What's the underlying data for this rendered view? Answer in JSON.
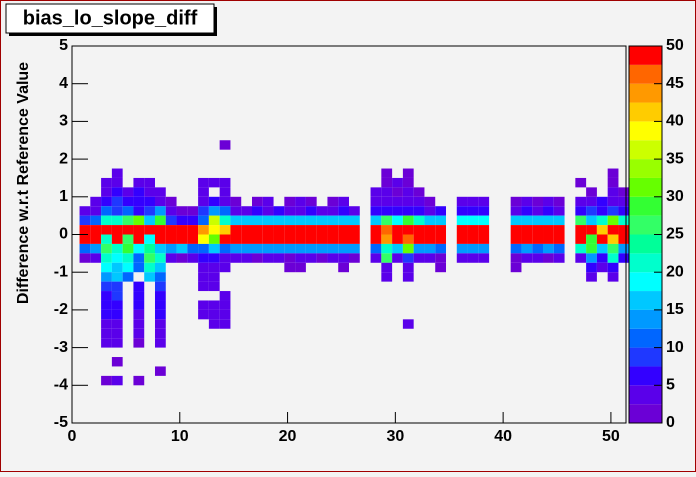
{
  "chart_data": {
    "type": "heatmap",
    "title": "bias_lo_slope_diff",
    "y_label": "Difference w.r.t Reference Value",
    "xlim": [
      0,
      51.4
    ],
    "ylim": [
      -5,
      5
    ],
    "xticks": [
      0,
      10,
      20,
      30,
      40,
      50
    ],
    "yticks": [
      -5,
      -4,
      -3,
      -2,
      -1,
      0,
      1,
      2,
      3,
      4,
      5
    ],
    "zlim": [
      0,
      50
    ],
    "zticks": [
      0,
      5,
      10,
      15,
      20,
      25,
      30,
      35,
      40,
      45,
      50
    ],
    "bin_size": [
      1,
      0.25
    ],
    "palette": [
      "#6b00d6",
      "#5a00ea",
      "#3300ff",
      "#1f38ff",
      "#0066ff",
      "#0099ff",
      "#00c8ff",
      "#00ffff",
      "#00ffcc",
      "#00ff99",
      "#33ff66",
      "#33ff33",
      "#66ff00",
      "#99ff00",
      "#ccff00",
      "#ffff00",
      "#ffcc00",
      "#ff9900",
      "#ff6600",
      "#ff0000"
    ],
    "rows": [
      {
        "y": 2.25,
        "x": [
          13.7
        ],
        "z": [
          2
        ]
      },
      {
        "y": 1.5,
        "x": [
          3.7,
          28.7,
          30.7,
          49.7
        ],
        "z": [
          3,
          2,
          2,
          2
        ]
      },
      {
        "y": 1.25,
        "x": [
          2.7,
          3.7,
          5.7,
          6.7,
          11.7,
          12.7,
          13.7,
          28.7,
          29.7,
          30.7,
          46.7,
          49.7
        ],
        "z": [
          3,
          4,
          3,
          3,
          3,
          3,
          3,
          2,
          3,
          2,
          2,
          2
        ]
      },
      {
        "y": 1,
        "x": [
          2.7,
          3.7,
          4.7,
          5.7,
          6.7,
          7.7,
          11.7,
          13.7,
          27.7,
          28.7,
          29.7,
          30.7,
          31.7,
          47.7,
          49.7,
          50.7
        ],
        "z": [
          4,
          6,
          4,
          5,
          4,
          3,
          3,
          3,
          3,
          3,
          2,
          3,
          2,
          2,
          3,
          2
        ]
      },
      {
        "y": 0.75,
        "x": [
          1.7,
          2.7,
          3.7,
          4.7,
          5.7,
          6.7,
          7.7,
          8.7,
          11.7,
          12.7,
          13.7,
          14.7,
          16.7,
          17.7,
          19.7,
          20.7,
          21.7,
          23.7,
          24.7,
          27.7,
          28.7,
          29.7,
          30.7,
          31.7,
          32.7,
          35.7,
          36.7,
          37.7,
          40.7,
          41.7,
          42.7,
          43.7,
          44.7,
          46.7,
          47.7,
          48.7,
          49.7,
          50.7
        ],
        "z": [
          3,
          6,
          8,
          5,
          7,
          6,
          4,
          2,
          4,
          5,
          3,
          2,
          2,
          3,
          2,
          3,
          2,
          2,
          3,
          3,
          4,
          3,
          4,
          3,
          2,
          3,
          3,
          3,
          2,
          3,
          2,
          3,
          2,
          4,
          3,
          5,
          4,
          3
        ]
      },
      {
        "y": 0.5,
        "x": [
          0.7,
          1.7,
          2.7,
          3.7,
          4.7,
          5.7,
          6.7,
          7.7,
          8.7,
          9.7,
          10.7,
          11.7,
          12.7,
          13.7,
          14.7,
          15.7,
          16.7,
          17.7,
          18.7,
          19.7,
          20.7,
          21.7,
          22.7,
          23.7,
          24.7,
          25.7,
          27.7,
          28.7,
          29.7,
          30.7,
          31.7,
          32.7,
          33.7,
          35.7,
          36.7,
          37.7,
          40.7,
          41.7,
          42.7,
          43.7,
          44.7,
          46.7,
          47.7,
          48.7,
          49.7,
          50.7
        ],
        "z": [
          4,
          3,
          10,
          8,
          12,
          6,
          9,
          14,
          3,
          2,
          2,
          8,
          14,
          10,
          4,
          3,
          5,
          4,
          6,
          3,
          4,
          5,
          3,
          4,
          6,
          4,
          5,
          6,
          7,
          5,
          6,
          4,
          5,
          6,
          5,
          6,
          4,
          5,
          4,
          5,
          4,
          6,
          8,
          7,
          9,
          6
        ]
      },
      {
        "y": 0.25,
        "x": [
          0.7,
          1.7,
          2.7,
          3.7,
          4.7,
          5.7,
          6.7,
          7.7,
          8.7,
          9.7,
          10.7,
          11.7,
          12.7,
          13.7,
          14.7,
          15.7,
          16.7,
          17.7,
          18.7,
          19.7,
          20.7,
          21.7,
          22.7,
          23.7,
          24.7,
          25.7,
          27.7,
          28.7,
          29.7,
          30.7,
          31.7,
          32.7,
          33.7,
          35.7,
          36.7,
          37.7,
          40.7,
          41.7,
          42.7,
          43.7,
          44.7,
          46.7,
          47.7,
          48.7,
          49.7,
          50.7
        ],
        "z": [
          8,
          10,
          20,
          22,
          25,
          30,
          15,
          28,
          8,
          6,
          6,
          12,
          35,
          20,
          16,
          17,
          16,
          17,
          16,
          17,
          16,
          17,
          16,
          17,
          16,
          17,
          15,
          25,
          18,
          28,
          20,
          15,
          17,
          18,
          18,
          18,
          16,
          16,
          16,
          16,
          16,
          25,
          15,
          22,
          30,
          20
        ]
      },
      {
        "y": 0,
        "x": [
          0.7,
          1.7,
          2.7,
          3.7,
          4.7,
          5.7,
          6.7,
          7.7,
          8.7,
          9.7,
          10.7,
          11.7,
          12.7,
          13.7,
          14.7,
          15.7,
          16.7,
          17.7,
          18.7,
          19.7,
          20.7,
          21.7,
          22.7,
          23.7,
          24.7,
          25.7,
          27.7,
          28.7,
          29.7,
          30.7,
          31.7,
          32.7,
          33.7,
          35.7,
          36.7,
          37.7,
          40.7,
          41.7,
          42.7,
          43.7,
          44.7,
          46.7,
          47.7,
          48.7,
          49.7,
          50.7
        ],
        "z": [
          50,
          50,
          50,
          50,
          50,
          50,
          50,
          50,
          50,
          50,
          50,
          44,
          38,
          42,
          50,
          50,
          50,
          50,
          50,
          50,
          50,
          50,
          50,
          50,
          50,
          50,
          50,
          46,
          50,
          50,
          50,
          50,
          50,
          50,
          50,
          50,
          50,
          50,
          50,
          50,
          50,
          50,
          50,
          42,
          50,
          50
        ]
      },
      {
        "y": -0.25,
        "x": [
          0.7,
          1.7,
          2.7,
          3.7,
          4.7,
          5.7,
          6.7,
          7.7,
          8.7,
          9.7,
          10.7,
          11.7,
          12.7,
          13.7,
          14.7,
          15.7,
          16.7,
          17.7,
          18.7,
          19.7,
          20.7,
          21.7,
          22.7,
          23.7,
          24.7,
          25.7,
          27.7,
          28.7,
          29.7,
          30.7,
          31.7,
          32.7,
          33.7,
          35.7,
          36.7,
          37.7,
          40.7,
          41.7,
          42.7,
          43.7,
          44.7,
          46.7,
          47.7,
          48.7,
          49.7,
          50.7
        ],
        "z": [
          50,
          50,
          20,
          50,
          25,
          50,
          18,
          50,
          50,
          50,
          50,
          38,
          30,
          50,
          50,
          50,
          50,
          50,
          50,
          50,
          50,
          50,
          50,
          50,
          50,
          50,
          50,
          44,
          50,
          46,
          50,
          50,
          50,
          50,
          50,
          50,
          50,
          50,
          50,
          50,
          50,
          50,
          28,
          50,
          40,
          50
        ]
      },
      {
        "y": -0.5,
        "x": [
          0.7,
          1.7,
          2.7,
          3.7,
          4.7,
          5.7,
          6.7,
          7.7,
          8.7,
          9.7,
          10.7,
          11.7,
          12.7,
          13.7,
          14.7,
          15.7,
          16.7,
          17.7,
          18.7,
          19.7,
          20.7,
          21.7,
          22.7,
          23.7,
          24.7,
          25.7,
          27.7,
          28.7,
          29.7,
          30.7,
          31.7,
          32.7,
          33.7,
          35.7,
          36.7,
          37.7,
          40.7,
          41.7,
          42.7,
          43.7,
          44.7,
          46.7,
          47.7,
          48.7,
          49.7,
          50.7
        ],
        "z": [
          12,
          14,
          25,
          20,
          28,
          18,
          24,
          15,
          14,
          16,
          12,
          10,
          15,
          12,
          14,
          13,
          14,
          13,
          14,
          13,
          14,
          13,
          14,
          13,
          14,
          13,
          12,
          22,
          15,
          30,
          14,
          13,
          12,
          14,
          13,
          14,
          12,
          13,
          12,
          14,
          12,
          20,
          28,
          15,
          26,
          14
        ]
      },
      {
        "y": -0.75,
        "x": [
          0.7,
          1.7,
          2.7,
          3.7,
          4.7,
          5.7,
          6.7,
          7.7,
          8.7,
          9.7,
          10.7,
          11.7,
          12.7,
          13.7,
          14.7,
          15.7,
          16.7,
          17.7,
          18.7,
          19.7,
          20.7,
          21.7,
          22.7,
          23.7,
          24.7,
          25.7,
          27.7,
          28.7,
          29.7,
          30.7,
          31.7,
          32.7,
          33.7,
          35.7,
          36.7,
          37.7,
          40.7,
          41.7,
          42.7,
          43.7,
          44.7,
          46.7,
          47.7,
          48.7,
          49.7,
          50.7
        ],
        "z": [
          2,
          3,
          22,
          18,
          20,
          12,
          25,
          20,
          3,
          2,
          3,
          6,
          5,
          4,
          3,
          3,
          2,
          3,
          3,
          2,
          3,
          3,
          2,
          3,
          3,
          2,
          3,
          26,
          4,
          8,
          3,
          3,
          2,
          3,
          3,
          3,
          2,
          3,
          3,
          2,
          3,
          3,
          14,
          6,
          22,
          5
        ]
      },
      {
        "y": -1,
        "x": [
          2.7,
          3.7,
          4.7,
          5.7,
          6.7,
          7.7,
          11.7,
          12.7,
          13.7,
          19.7,
          20.7,
          24.7,
          28.7,
          30.7,
          33.7,
          40.7,
          47.7,
          48.7,
          49.7
        ],
        "z": [
          18,
          15,
          18,
          10,
          20,
          16,
          4,
          3,
          4,
          2,
          2,
          2,
          3,
          4,
          2,
          2,
          6,
          3,
          5
        ]
      },
      {
        "y": -1.25,
        "x": [
          2.7,
          3.7,
          4.7,
          6.7,
          7.7,
          11.7,
          12.7,
          28.7,
          30.7,
          47.7,
          49.7
        ],
        "z": [
          14,
          16,
          12,
          15,
          12,
          3,
          3,
          3,
          3,
          3,
          3
        ]
      },
      {
        "y": -1.5,
        "x": [
          2.7,
          3.7,
          5.7,
          7.7,
          11.7,
          12.7
        ],
        "z": [
          8,
          9,
          5,
          8,
          3,
          3
        ]
      },
      {
        "y": -1.75,
        "x": [
          2.7,
          3.7,
          5.7,
          7.7,
          13.7
        ],
        "z": [
          7,
          8,
          5,
          6,
          3
        ]
      },
      {
        "y": -2,
        "x": [
          2.7,
          3.7,
          5.7,
          7.7,
          11.7,
          12.7,
          13.7
        ],
        "z": [
          7,
          7,
          6,
          6,
          3,
          3,
          3
        ]
      },
      {
        "y": -2.25,
        "x": [
          2.7,
          3.7,
          5.7,
          7.7,
          11.7,
          12.7,
          13.7
        ],
        "z": [
          6,
          6,
          4,
          5,
          3,
          3,
          3
        ]
      },
      {
        "y": -2.5,
        "x": [
          2.7,
          3.7,
          5.7,
          7.7,
          12.7,
          13.7,
          30.7
        ],
        "z": [
          4,
          4,
          4,
          4,
          3,
          3,
          3
        ]
      },
      {
        "y": -2.75,
        "x": [
          2.7,
          3.7,
          5.7,
          7.7
        ],
        "z": [
          3,
          4,
          3,
          3
        ]
      },
      {
        "y": -3,
        "x": [
          2.7,
          3.7,
          5.7,
          7.7
        ],
        "z": [
          3,
          3,
          2,
          3
        ]
      },
      {
        "y": -3.5,
        "x": [
          3.7
        ],
        "z": [
          2
        ]
      },
      {
        "y": -3.75,
        "x": [
          7.7
        ],
        "z": [
          2
        ]
      },
      {
        "y": -4,
        "x": [
          2.7,
          3.7,
          5.7
        ],
        "z": [
          2,
          3,
          2
        ]
      }
    ]
  }
}
